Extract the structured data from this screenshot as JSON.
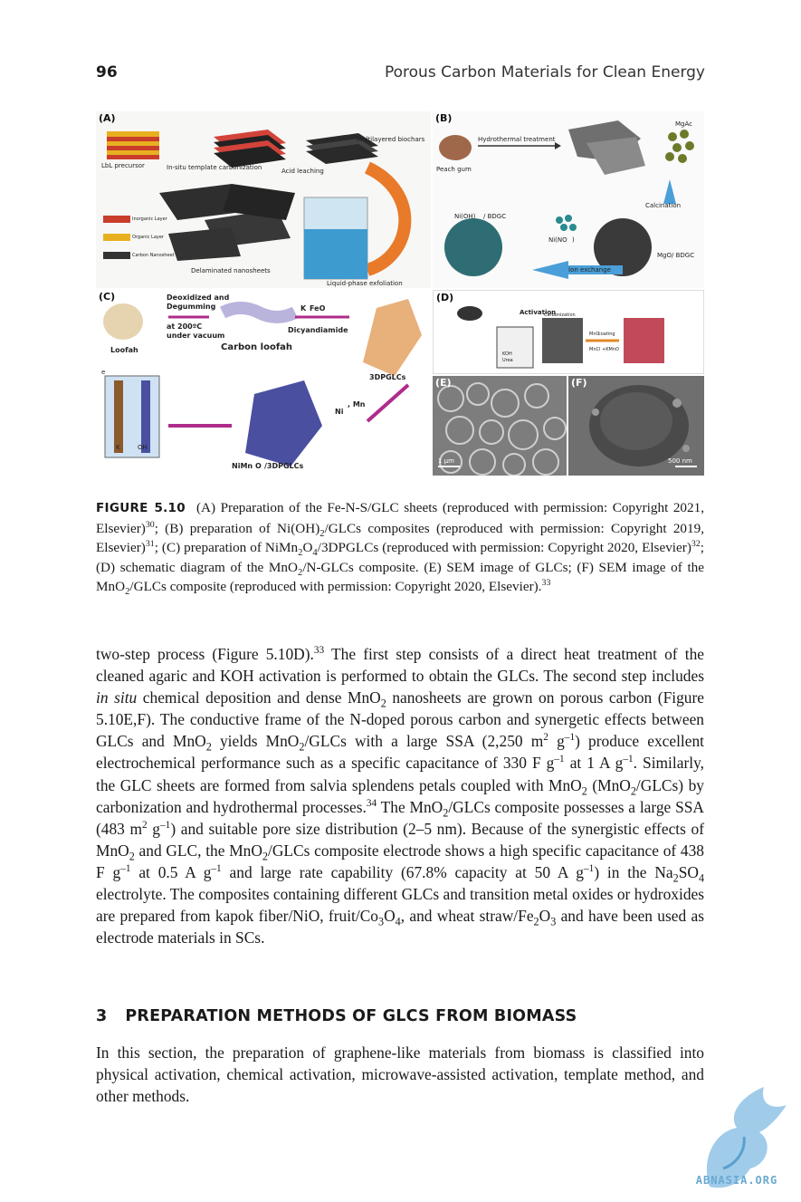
{
  "header": {
    "page_number": "96",
    "book_title": "Porous Carbon Materials for Clean Energy"
  },
  "figure": {
    "panel_a": {
      "label": "(A)",
      "texts": [
        "LbL precursor",
        "In-situ template carbonization",
        "Acid leaching",
        "Multilayered biochars",
        "Inorganic Layer",
        "Organic Layer",
        "Carbon Nanosheet",
        "Delaminated nanosheets",
        "Liquid-phase exfoliation"
      ]
    },
    "panel_b": {
      "label": "(B)",
      "texts": [
        "Hydrothermal treatment",
        "MgAc",
        "Peach gum",
        "Calcination",
        "Ni(OH)",
        "/ BDGC",
        "Ni(NO",
        ")",
        "MgO/ BDGC",
        "Ion exchange"
      ]
    },
    "panel_c": {
      "label": "(C)",
      "texts": [
        "Deoxidized and",
        "Degumming",
        "at 200ºC",
        "under vacuum",
        "Loofah",
        "Carbon loofah",
        "K",
        "FeO",
        "Dicyandiamide",
        "3DPGLCs",
        "Ni",
        ", Mn",
        "NiMn",
        "O",
        "/3DPGLCs",
        "K",
        "OH",
        "e"
      ]
    },
    "panel_d": {
      "label": "(D)",
      "texts": [
        "Activation",
        "Carbonization",
        "KOH",
        "Urea",
        "MnO",
        " coating",
        "MnCl",
        "+KMnO"
      ]
    },
    "panel_e": {
      "label": "(E)",
      "scale": "1 μm"
    },
    "panel_f": {
      "label": "(F)",
      "scale": "500 nm"
    }
  },
  "caption": {
    "label": "FIGURE 5.10",
    "t1": "(A) Preparation of the Fe-N-S/GLC sheets (reproduced with permission: Copyright 2021, Elsevier)",
    "r1": "30",
    "t2": "; (B) preparation of Ni(OH)",
    "s1": "2",
    "t3": "/GLCs composites (reproduced with permission: Copyright 2019, Elsevier)",
    "r2": "31",
    "t4": "; (C) preparation of NiMn",
    "s2": "2",
    "t5": "O",
    "s3": "4",
    "t6": "/3DPGLCs (reproduced with permission: Copyright 2020, Elsevier)",
    "r3": "32",
    "t7": "; (D) schematic diagram of the MnO",
    "s4": "2",
    "t8": "/N-GLCs composite. (E) SEM image of GLCs; (F) SEM image of the MnO",
    "s5": "2",
    "t9": "/GLCs composite (reproduced with permission: Copyright 2020, Elsevier).",
    "r4": "33"
  },
  "body": {
    "a1": "two-step process (Figure 5.10D).",
    "r1": "33",
    "a2": " The first step consists of a direct heat treatment of the cleaned agaric and KOH activation is performed to obtain the GLCs. The second step includes ",
    "em1": "in situ",
    "a3": " chemical deposition and dense MnO",
    "s1": "2",
    "a4": " nanosheets are grown on porous carbon (Figure 5.10E,F). The conductive frame of the N-doped porous carbon and synergetic effects between GLCs and MnO",
    "s2": "2",
    "a5": " yields MnO",
    "s3": "2",
    "a6": "/GLCs with a large SSA (2,250 m",
    "p1": "2",
    "a7": " g",
    "p2": "–1",
    "a8": ") produce excellent electrochemical performance such as a specific capacitance of 330 F g",
    "p3": "–1",
    "a9": " at 1 A g",
    "p4": "–1",
    "a10": ". Similarly, the GLC sheets are formed from salvia splendens petals coupled with MnO",
    "s4": "2",
    "a11": " (MnO",
    "s5": "2",
    "a12": "/GLCs) by carbonization and hydrothermal processes.",
    "r2": "34",
    "a13": " The MnO",
    "s6": "2",
    "a14": "/GLCs composite possesses a large SSA (483 m",
    "p5": "2",
    "a15": " g",
    "p6": "–1",
    "a16": ") and suitable pore size distribution (2–5 nm). Because of the synergistic effects of MnO",
    "s7": "2",
    "a17": " and GLC, the MnO",
    "s8": "2",
    "a18": "/GLCs composite electrode shows a high specific capacitance of 438 F g",
    "p7": "–1",
    "a19": " at 0.5 A g",
    "p8": "–1",
    "a20": " and large rate capability (67.8% capacity at 50 A g",
    "p9": "–1",
    "a21": ") in the Na",
    "s9": "2",
    "a22": "SO",
    "s10": "4",
    "a23": " electrolyte. The composites containing different GLCs and transition metal oxides or hydroxides are prepared from kapok fiber/NiO, fruit/Co",
    "s11": "3",
    "a24": "O",
    "s12": "4",
    "a25": ", and wheat straw/Fe",
    "s13": "2",
    "a26": "O",
    "s14": "3",
    "a27": " and have been used as electrode materials in SCs."
  },
  "section": {
    "number": "3",
    "title": "PREPARATION METHODS OF GLCS FROM BIOMASS"
  },
  "para2": "In this section, the preparation of graphene-like materials from biomass is classified into physical activation, chemical activation, microwave-assisted activation, template method, and other methods.",
  "watermark": {
    "text": "ABNASIA.ORG"
  }
}
